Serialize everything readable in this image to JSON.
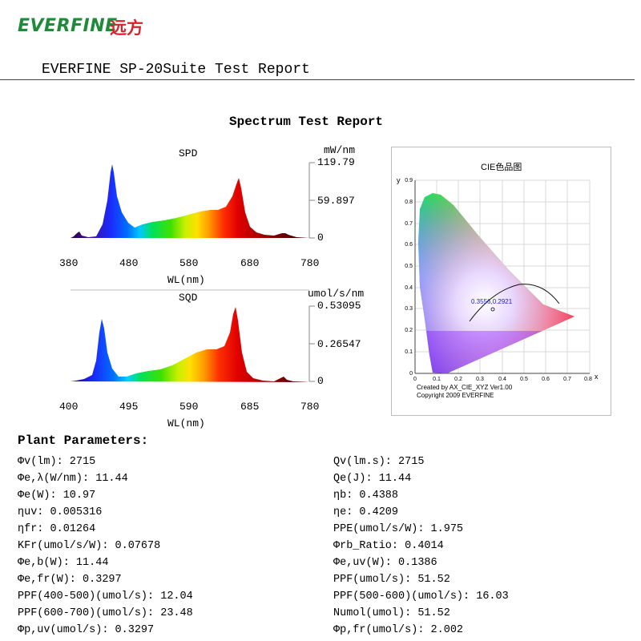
{
  "header": {
    "logo_text": "EVERFINE",
    "logo_cn": "远方",
    "report_title": "EVERFINE SP-20Suite Test Report"
  },
  "spectrum": {
    "title": "Spectrum Test Report",
    "spd": {
      "label": "SPD",
      "unit": "mW/nm",
      "y_top": "119.79",
      "y_mid": "59.897",
      "y_zero": "0",
      "x_ticks": [
        "380",
        "480",
        "580",
        "680",
        "780"
      ],
      "x_label": "WL(nm)"
    },
    "sqd": {
      "label": "SQD",
      "unit": "umol/s/nm",
      "y_top": "0.53095",
      "y_mid": "0.26547",
      "y_zero": "0",
      "x_ticks": [
        "400",
        "495",
        "590",
        "685",
        "780"
      ],
      "x_label": "WL(nm)"
    }
  },
  "cie": {
    "title": "CIE色品图",
    "y_axis": "y",
    "x_axis": "x",
    "y_ticks": [
      "0.9",
      "0.8",
      "0.7",
      "0.6",
      "0.5",
      "0.4",
      "0.3",
      "0.2",
      "0.1",
      "0"
    ],
    "x_ticks": [
      "0",
      "0.1",
      "0.2",
      "0.3",
      "0.4",
      "0.5",
      "0.6",
      "0.7",
      "0.8"
    ],
    "point_label": "0.3556,0.2921",
    "credit_1": "Created by AX_CIE_XYZ Ver1.00",
    "credit_2": "Copyright 2009 EVERFINE"
  },
  "plant": {
    "title": "Plant Parameters:",
    "left": [
      "Φv(lm): 2715",
      "Φe,λ(W/nm): 11.44",
      "Φe(W): 10.97",
      "ηuv: 0.005316",
      "ηfr: 0.01264",
      "KFr(umol/s/W): 0.07678",
      "Φe,b(W): 11.44",
      "Φe,fr(W): 0.3297",
      "PPF(400-500)(umol/s): 12.04",
      "PPF(600-700)(umol/s): 23.48",
      "Φp,uv(umol/s): 0.3297"
    ],
    "right": [
      "Qv(lm.s): 2715",
      "Qe(J): 11.44",
      "ηb: 0.4388",
      "ηe: 0.4209",
      "PPE(umol/s/W): 1.975",
      "Φrb_Ratio: 0.4014",
      "Φe,uv(W): 0.1386",
      "PPF(umol/s): 51.52",
      "PPF(500-600)(umol/s): 16.03",
      "Numol(umol): 51.52",
      "Φp,fr(umol/s): 2.002"
    ]
  }
}
